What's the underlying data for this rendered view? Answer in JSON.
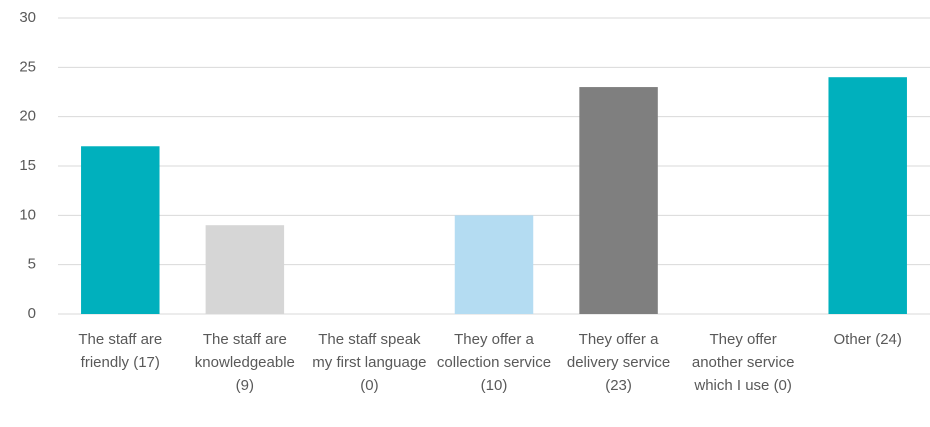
{
  "chart_data": {
    "type": "bar",
    "categories": [
      "The staff are friendly (17)",
      "The staff are knowledgeable (9)",
      "The staff speak my first language (0)",
      "They offer a collection service (10)",
      "They offer a delivery service (23)",
      "They offer another service which I use (0)",
      "Other (24)"
    ],
    "values": [
      17,
      9,
      0,
      10,
      23,
      0,
      24
    ],
    "colors": [
      "#00b0bd",
      "#d6d6d6",
      "#bfbfbf",
      "#b4dcf2",
      "#7f7f7f",
      "#bfbfbf",
      "#00b0bd"
    ],
    "ylim": [
      0,
      30
    ],
    "yticks": [
      0,
      5,
      10,
      15,
      20,
      25,
      30
    ],
    "grid": true
  }
}
